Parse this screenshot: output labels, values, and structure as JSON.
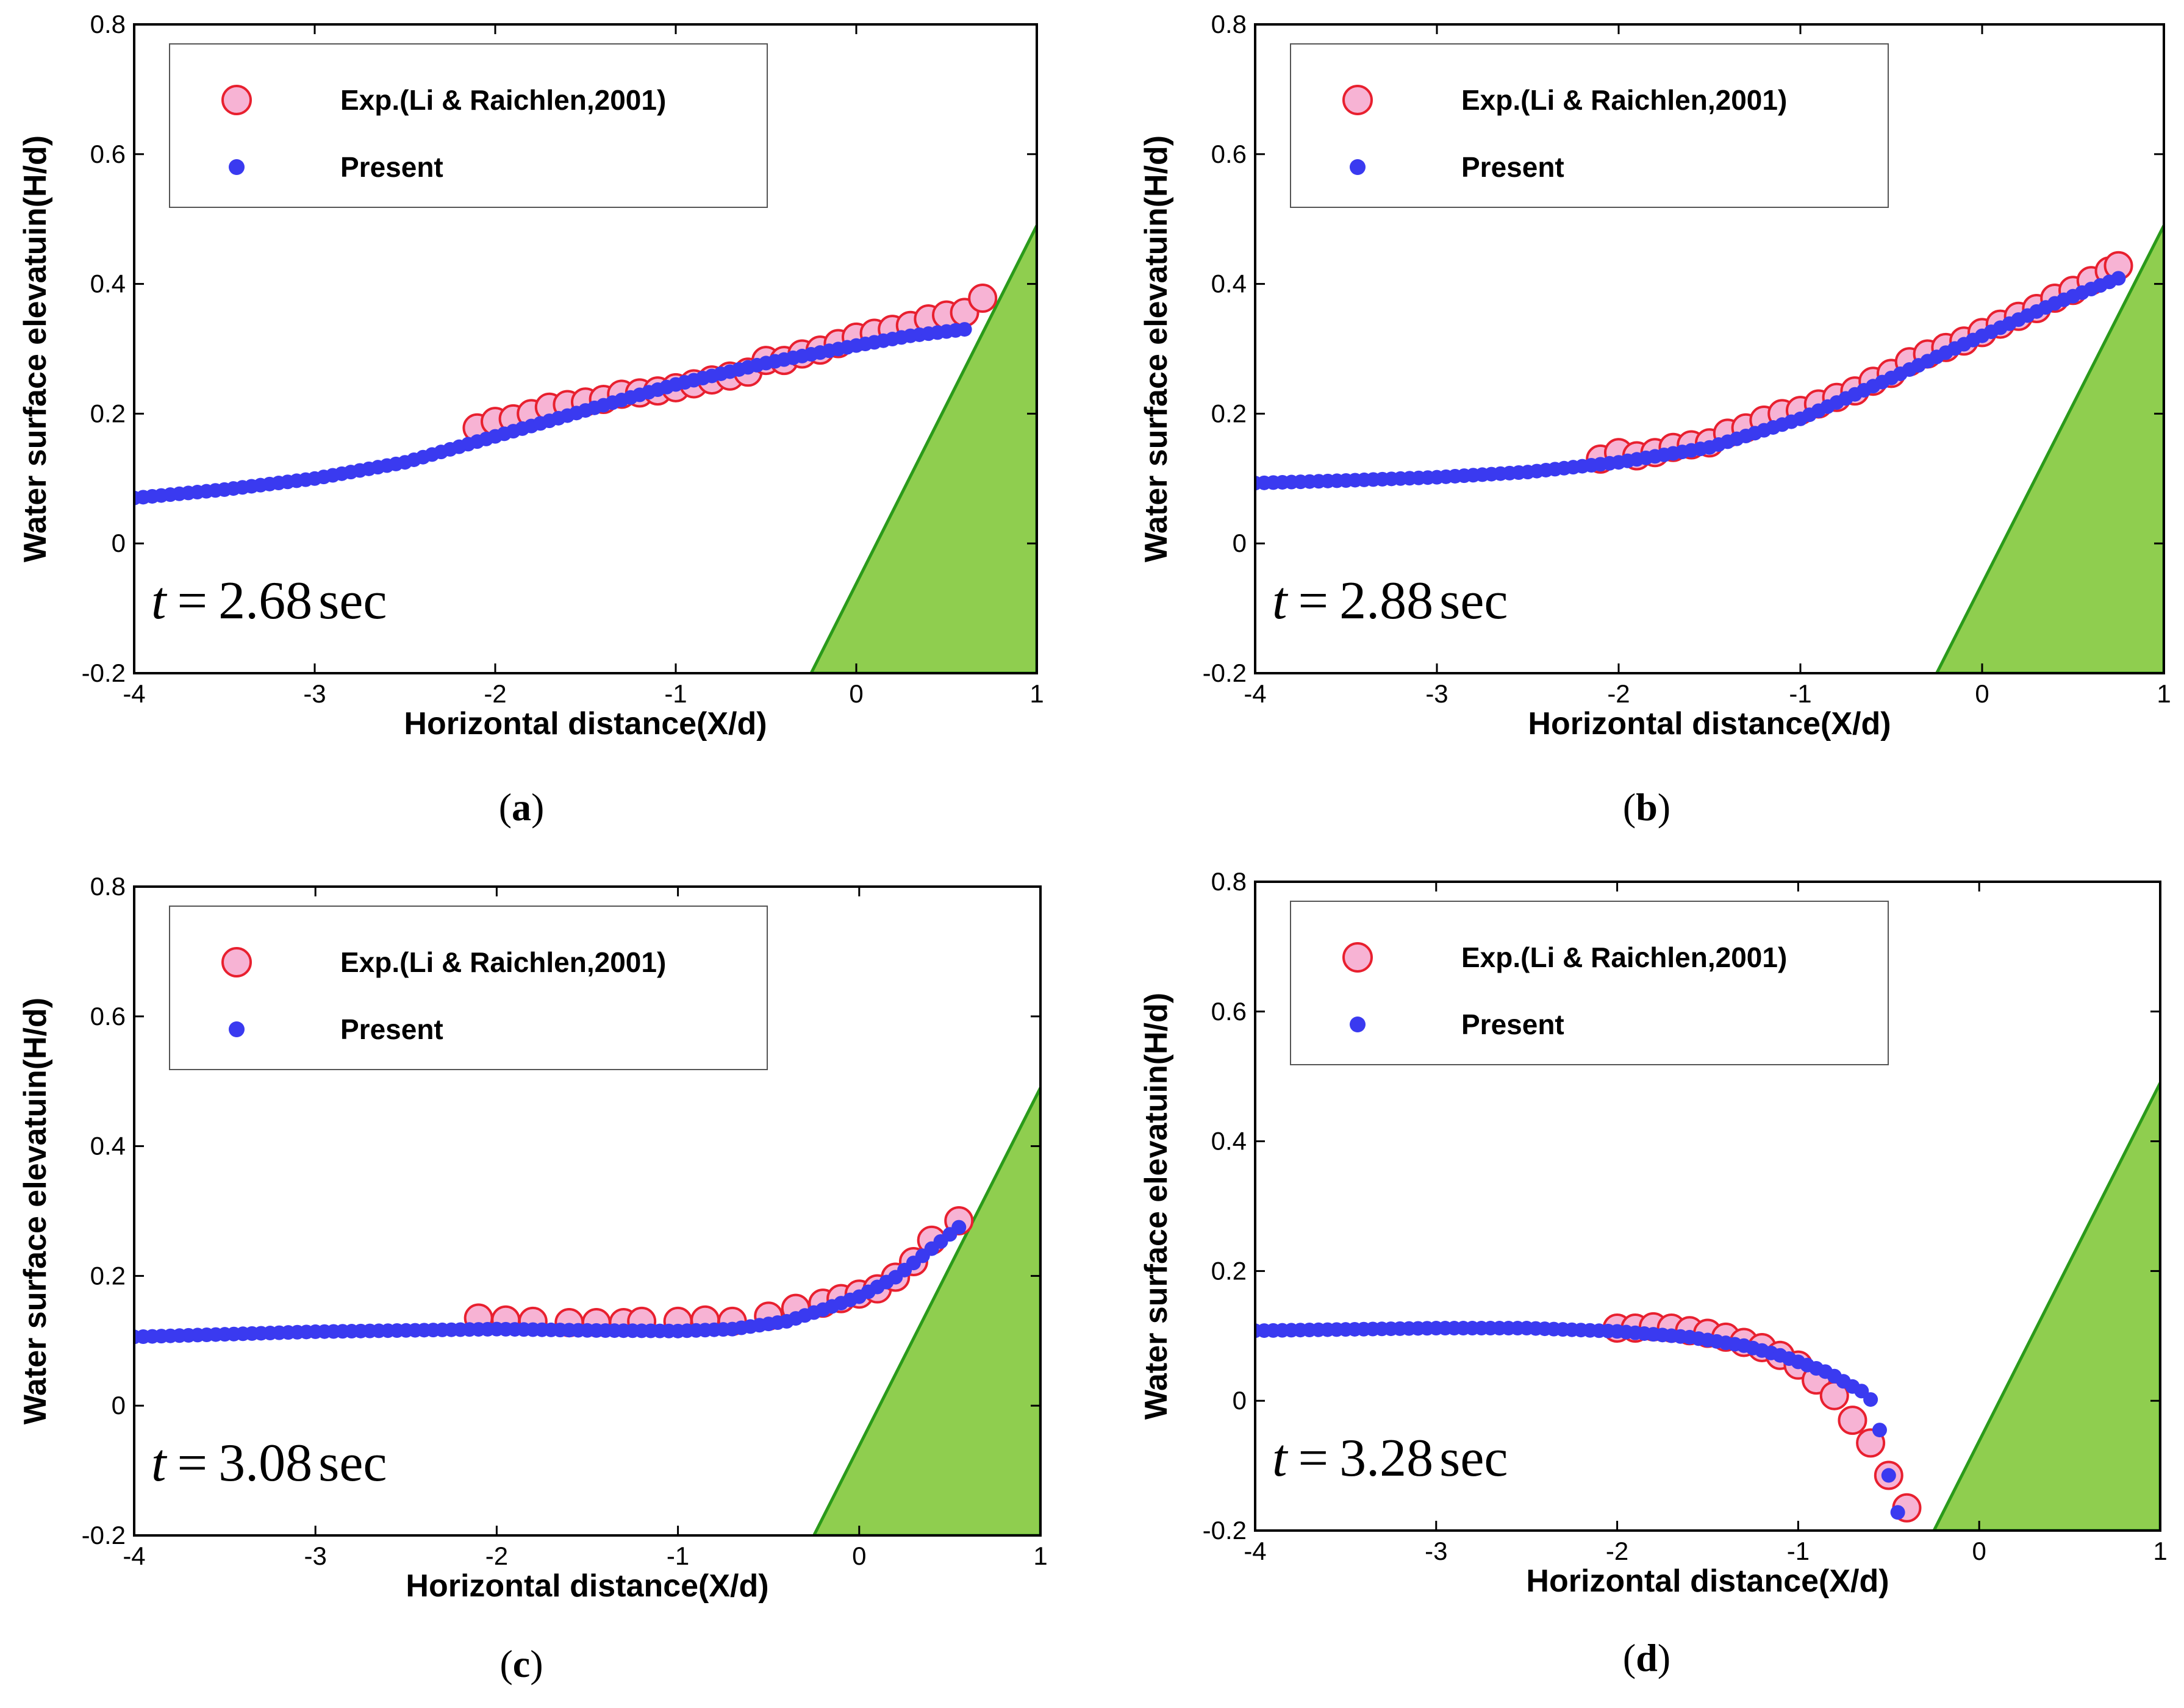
{
  "figure": {
    "x_label": "Horizontal distance(X/d)",
    "y_label": "Water surface elevatuin(H/d)",
    "legend": {
      "exp": "Exp.(Li & Raichlen,2001)",
      "present": "Present"
    },
    "colors": {
      "exp_fill": "#f7b3d4",
      "exp_edge": "#e8202f",
      "present": "#3a3af0",
      "slope_fill": "#8fce4f",
      "slope_edge": "#2a9a1a"
    }
  },
  "chart_data": [
    {
      "id": "a",
      "type": "scatter",
      "caption_open": "(",
      "caption_letter": "a",
      "caption_close": ")",
      "time_label_t": "t",
      "time_label_eq": "=",
      "time_label_value": "2.68",
      "time_label_unit": "sec",
      "xlim": [
        -4,
        1
      ],
      "ylim": [
        -0.2,
        0.8
      ],
      "xticks": [
        "-4",
        "-3",
        "-2",
        "-1",
        "0",
        "1"
      ],
      "yticks": [
        "-0.2",
        "0",
        "0.2",
        "0.4",
        "0.6",
        "0.8"
      ],
      "slope": [
        [
          -0.25,
          -0.2
        ],
        [
          1.0,
          0.49
        ],
        [
          1.0,
          -0.2
        ]
      ],
      "series": [
        {
          "name": "Exp.(Li & Raichlen,2001)",
          "x": [
            -2.1,
            -2.0,
            -1.9,
            -1.8,
            -1.7,
            -1.6,
            -1.5,
            -1.4,
            -1.3,
            -1.2,
            -1.1,
            -1.0,
            -0.9,
            -0.8,
            -0.7,
            -0.6,
            -0.5,
            -0.4,
            -0.3,
            -0.2,
            -0.1,
            0.0,
            0.1,
            0.2,
            0.3,
            0.4,
            0.5,
            0.6,
            0.7
          ],
          "y": [
            0.178,
            0.188,
            0.192,
            0.2,
            0.21,
            0.214,
            0.218,
            0.222,
            0.23,
            0.232,
            0.235,
            0.24,
            0.246,
            0.252,
            0.258,
            0.264,
            0.282,
            0.282,
            0.292,
            0.298,
            0.308,
            0.318,
            0.324,
            0.33,
            0.336,
            0.346,
            0.352,
            0.356,
            0.378
          ]
        },
        {
          "name": "Present",
          "gen": {
            "x0": -4.0,
            "x1": 0.6,
            "step": 0.05
          },
          "curve": [
            [
              -4.0,
              0.07
            ],
            [
              -3.5,
              0.083
            ],
            [
              -3.0,
              0.1
            ],
            [
              -2.5,
              0.125
            ],
            [
              -2.0,
              0.165
            ],
            [
              -1.5,
              0.205
            ],
            [
              -1.0,
              0.245
            ],
            [
              -0.5,
              0.278
            ],
            [
              0.0,
              0.305
            ],
            [
              0.3,
              0.32
            ],
            [
              0.6,
              0.33
            ]
          ]
        }
      ]
    },
    {
      "id": "b",
      "type": "scatter",
      "caption_open": "(",
      "caption_letter": "b",
      "caption_close": ")",
      "time_label_t": "t",
      "time_label_eq": "=",
      "time_label_value": "2.88",
      "time_label_unit": "sec",
      "xlim": [
        -4,
        1
      ],
      "ylim": [
        -0.2,
        0.8
      ],
      "xticks": [
        "-4",
        "-3",
        "-2",
        "-1",
        "0",
        "1"
      ],
      "yticks": [
        "-0.2",
        "0",
        "0.2",
        "0.4",
        "0.6",
        "0.8"
      ],
      "slope": [
        [
          -0.25,
          -0.2
        ],
        [
          1.0,
          0.49
        ],
        [
          1.0,
          -0.2
        ]
      ],
      "series": [
        {
          "name": "Exp.(Li & Raichlen,2001)",
          "x": [
            -2.1,
            -2.0,
            -1.9,
            -1.8,
            -1.7,
            -1.6,
            -1.5,
            -1.4,
            -1.3,
            -1.2,
            -1.1,
            -1.0,
            -0.9,
            -0.8,
            -0.7,
            -0.6,
            -0.5,
            -0.4,
            -0.3,
            -0.2,
            -0.1,
            0.0,
            0.1,
            0.2,
            0.3,
            0.4,
            0.5,
            0.6,
            0.7,
            0.75
          ],
          "y": [
            0.13,
            0.14,
            0.135,
            0.14,
            0.148,
            0.152,
            0.155,
            0.17,
            0.178,
            0.19,
            0.2,
            0.205,
            0.215,
            0.225,
            0.235,
            0.25,
            0.262,
            0.28,
            0.292,
            0.302,
            0.312,
            0.325,
            0.338,
            0.35,
            0.362,
            0.378,
            0.39,
            0.405,
            0.42,
            0.428
          ]
        },
        {
          "name": "Present",
          "gen": {
            "x0": -4.0,
            "x1": 0.78,
            "step": 0.05
          },
          "curve": [
            [
              -4.0,
              0.093
            ],
            [
              -3.5,
              0.097
            ],
            [
              -3.0,
              0.102
            ],
            [
              -2.5,
              0.11
            ],
            [
              -2.0,
              0.125
            ],
            [
              -1.5,
              0.148
            ],
            [
              -1.0,
              0.192
            ],
            [
              -0.5,
              0.255
            ],
            [
              0.0,
              0.32
            ],
            [
              0.4,
              0.37
            ],
            [
              0.78,
              0.412
            ]
          ]
        }
      ]
    },
    {
      "id": "c",
      "type": "scatter",
      "caption_open": "(",
      "caption_letter": "c",
      "caption_close": ")",
      "time_label_t": "t",
      "time_label_eq": "=",
      "time_label_value": "3.08",
      "time_label_unit": "sec",
      "xlim": [
        -4,
        1
      ],
      "ylim": [
        -0.2,
        0.8
      ],
      "xticks": [
        "-4",
        "-3",
        "-2",
        "-1",
        "0",
        "1"
      ],
      "yticks": [
        "-0.2",
        "0",
        "0.2",
        "0.4",
        "0.6",
        "0.8"
      ],
      "slope": [
        [
          -0.25,
          -0.2
        ],
        [
          1.0,
          0.49
        ],
        [
          1.0,
          -0.2
        ]
      ],
      "series": [
        {
          "name": "Exp.(Li & Raichlen,2001)",
          "x": [
            -2.1,
            -1.95,
            -1.8,
            -1.6,
            -1.45,
            -1.3,
            -1.2,
            -1.0,
            -0.85,
            -0.7,
            -0.5,
            -0.35,
            -0.2,
            -0.1,
            0.0,
            0.1,
            0.2,
            0.3,
            0.4,
            0.55
          ],
          "y": [
            0.135,
            0.132,
            0.13,
            0.128,
            0.128,
            0.128,
            0.13,
            0.13,
            0.132,
            0.13,
            0.138,
            0.15,
            0.158,
            0.165,
            0.172,
            0.18,
            0.198,
            0.222,
            0.255,
            0.285
          ]
        },
        {
          "name": "Present",
          "gen": {
            "x0": -4.0,
            "x1": 0.55,
            "step": 0.05
          },
          "curve": [
            [
              -4.0,
              0.106
            ],
            [
              -3.0,
              0.114
            ],
            [
              -2.0,
              0.118
            ],
            [
              -1.5,
              0.116
            ],
            [
              -1.0,
              0.115
            ],
            [
              -0.7,
              0.118
            ],
            [
              -0.4,
              0.13
            ],
            [
              -0.2,
              0.148
            ],
            [
              0.0,
              0.168
            ],
            [
              0.2,
              0.198
            ],
            [
              0.4,
              0.242
            ],
            [
              0.55,
              0.275
            ]
          ]
        }
      ]
    },
    {
      "id": "d",
      "type": "scatter",
      "caption_open": "(",
      "caption_letter": "d",
      "caption_close": ")",
      "time_label_t": "t",
      "time_label_eq": "=",
      "time_label_value": "3.28",
      "time_label_unit": "sec",
      "xlim": [
        -4,
        1
      ],
      "ylim": [
        -0.2,
        0.8
      ],
      "xticks": [
        "-4",
        "-3",
        "-2",
        "-1",
        "0",
        "1"
      ],
      "yticks": [
        "-0.2",
        "0",
        "0.2",
        "0.4",
        "0.6",
        "0.8"
      ],
      "slope": [
        [
          -0.25,
          -0.2
        ],
        [
          1.0,
          0.49
        ],
        [
          1.0,
          -0.2
        ]
      ],
      "series": [
        {
          "name": "Exp.(Li & Raichlen,2001)",
          "x": [
            -2.0,
            -1.9,
            -1.8,
            -1.7,
            -1.6,
            -1.5,
            -1.4,
            -1.3,
            -1.2,
            -1.1,
            -1.0,
            -0.9,
            -0.8,
            -0.7,
            -0.6,
            -0.5,
            -0.4
          ],
          "y": [
            0.112,
            0.112,
            0.114,
            0.112,
            0.108,
            0.104,
            0.098,
            0.09,
            0.082,
            0.07,
            0.055,
            0.032,
            0.008,
            -0.03,
            -0.065,
            -0.115,
            -0.165
          ]
        },
        {
          "name": "Present",
          "gen": {
            "x0": -4.0,
            "x1": -0.95,
            "step": 0.05
          },
          "curve": [
            [
              -4.0,
              0.108
            ],
            [
              -3.0,
              0.112
            ],
            [
              -2.5,
              0.112
            ],
            [
              -2.0,
              0.107
            ],
            [
              -1.6,
              0.098
            ],
            [
              -1.3,
              0.085
            ],
            [
              -1.1,
              0.07
            ],
            [
              -0.95,
              0.055
            ]
          ],
          "extra": [
            [
              -0.9,
              0.05
            ],
            [
              -0.85,
              0.045
            ],
            [
              -0.8,
              0.038
            ],
            [
              -0.75,
              0.03
            ],
            [
              -0.7,
              0.022
            ],
            [
              -0.65,
              0.015
            ],
            [
              -0.6,
              0.002
            ],
            [
              -0.55,
              -0.045
            ],
            [
              -0.5,
              -0.115
            ],
            [
              -0.45,
              -0.172
            ]
          ]
        }
      ]
    }
  ]
}
